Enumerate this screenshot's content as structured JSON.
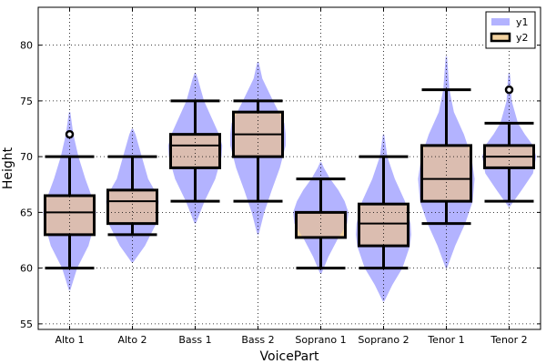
{
  "chart_data": {
    "type": "box_violin",
    "xlabel": "VoicePart",
    "ylabel": "Height",
    "ylim": [
      54.5,
      83.4
    ],
    "yticks": [
      55,
      60,
      65,
      70,
      75,
      80
    ],
    "grid": true,
    "grid_style": "dotted",
    "legend_placement": "top-right",
    "colors": {
      "violin": "#b3b3ff",
      "box_fill": "#f2d2a0",
      "overlap": "#dbbdb0",
      "stroke": "#000000"
    },
    "categories": [
      "Alto 1",
      "Alto 2",
      "Bass 1",
      "Bass 2",
      "Soprano 1",
      "Soprano 2",
      "Tenor 1",
      "Tenor 2"
    ],
    "series": [
      {
        "name": "y1",
        "kind": "violin",
        "violins": [
          {
            "min": 58,
            "max": 74,
            "widths": [
              [
                58,
                0.01
              ],
              [
                60,
                0.12
              ],
              [
                62,
                0.3
              ],
              [
                64,
                0.4
              ],
              [
                65,
                0.42
              ],
              [
                66,
                0.38
              ],
              [
                68,
                0.25
              ],
              [
                70,
                0.14
              ],
              [
                72,
                0.06
              ],
              [
                74,
                0.01
              ]
            ]
          },
          {
            "min": 60.5,
            "max": 72.5,
            "widths": [
              [
                60.5,
                0.01
              ],
              [
                62,
                0.2
              ],
              [
                64,
                0.38
              ],
              [
                65,
                0.4
              ],
              [
                66,
                0.42
              ],
              [
                67,
                0.35
              ],
              [
                68,
                0.25
              ],
              [
                70,
                0.15
              ],
              [
                72,
                0.05
              ],
              [
                72.5,
                0.01
              ]
            ]
          },
          {
            "min": 64,
            "max": 77.5,
            "widths": [
              [
                64,
                0.01
              ],
              [
                66,
                0.15
              ],
              [
                68,
                0.32
              ],
              [
                70,
                0.42
              ],
              [
                71,
                0.43
              ],
              [
                72,
                0.38
              ],
              [
                73,
                0.3
              ],
              [
                75,
                0.14
              ],
              [
                77,
                0.04
              ],
              [
                77.5,
                0.01
              ]
            ]
          },
          {
            "min": 63,
            "max": 78.5,
            "widths": [
              [
                63,
                0.01
              ],
              [
                65,
                0.1
              ],
              [
                67,
                0.22
              ],
              [
                69,
                0.35
              ],
              [
                71,
                0.44
              ],
              [
                72,
                0.44
              ],
              [
                73,
                0.42
              ],
              [
                75,
                0.24
              ],
              [
                77,
                0.07
              ],
              [
                78.5,
                0.01
              ]
            ]
          },
          {
            "min": 59.5,
            "max": 69.5,
            "widths": [
              [
                59.5,
                0.01
              ],
              [
                61,
                0.12
              ],
              [
                62.5,
                0.26
              ],
              [
                64,
                0.42
              ],
              [
                65,
                0.44
              ],
              [
                66,
                0.38
              ],
              [
                67,
                0.28
              ],
              [
                68,
                0.15
              ],
              [
                69,
                0.05
              ],
              [
                69.5,
                0.01
              ]
            ]
          },
          {
            "min": 57,
            "max": 72,
            "widths": [
              [
                57,
                0.01
              ],
              [
                58.5,
                0.14
              ],
              [
                60,
                0.3
              ],
              [
                62,
                0.42
              ],
              [
                63,
                0.44
              ],
              [
                64,
                0.43
              ],
              [
                66,
                0.34
              ],
              [
                68,
                0.18
              ],
              [
                70,
                0.06
              ],
              [
                72,
                0.01
              ]
            ]
          },
          {
            "min": 60,
            "max": 79,
            "widths": [
              [
                60,
                0.01
              ],
              [
                62,
                0.14
              ],
              [
                64,
                0.3
              ],
              [
                66,
                0.42
              ],
              [
                68,
                0.45
              ],
              [
                70,
                0.4
              ],
              [
                72,
                0.28
              ],
              [
                74,
                0.12
              ],
              [
                76,
                0.05
              ],
              [
                79,
                0.01
              ]
            ]
          },
          {
            "min": 65.5,
            "max": 77.5,
            "widths": [
              [
                65.5,
                0.01
              ],
              [
                67,
                0.2
              ],
              [
                68.5,
                0.38
              ],
              [
                70,
                0.43
              ],
              [
                71,
                0.38
              ],
              [
                72,
                0.25
              ],
              [
                73,
                0.14
              ],
              [
                75,
                0.04
              ],
              [
                77,
                0.02
              ],
              [
                77.5,
                0.01
              ]
            ]
          }
        ]
      },
      {
        "name": "y2",
        "kind": "box",
        "boxes": [
          {
            "whislo": 60,
            "q1": 63,
            "med": 65,
            "q3": 66.5,
            "whishi": 70,
            "fliers": [
              72
            ]
          },
          {
            "whislo": 63,
            "q1": 64,
            "med": 66,
            "q3": 67,
            "whishi": 70,
            "fliers": []
          },
          {
            "whislo": 66,
            "q1": 69,
            "med": 71,
            "q3": 72,
            "whishi": 75,
            "fliers": []
          },
          {
            "whislo": 66,
            "q1": 70,
            "med": 72,
            "q3": 74,
            "whishi": 75,
            "fliers": []
          },
          {
            "whislo": 60,
            "q1": 62.75,
            "med": 65,
            "q3": 65,
            "whishi": 68,
            "fliers": []
          },
          {
            "whislo": 60,
            "q1": 62,
            "med": 64,
            "q3": 65.75,
            "whishi": 70,
            "fliers": []
          },
          {
            "whislo": 64,
            "q1": 66,
            "med": 68,
            "q3": 71,
            "whishi": 76,
            "fliers": []
          },
          {
            "whislo": 66,
            "q1": 69,
            "med": 70,
            "q3": 71,
            "whishi": 73,
            "fliers": [
              76
            ]
          }
        ]
      }
    ]
  }
}
